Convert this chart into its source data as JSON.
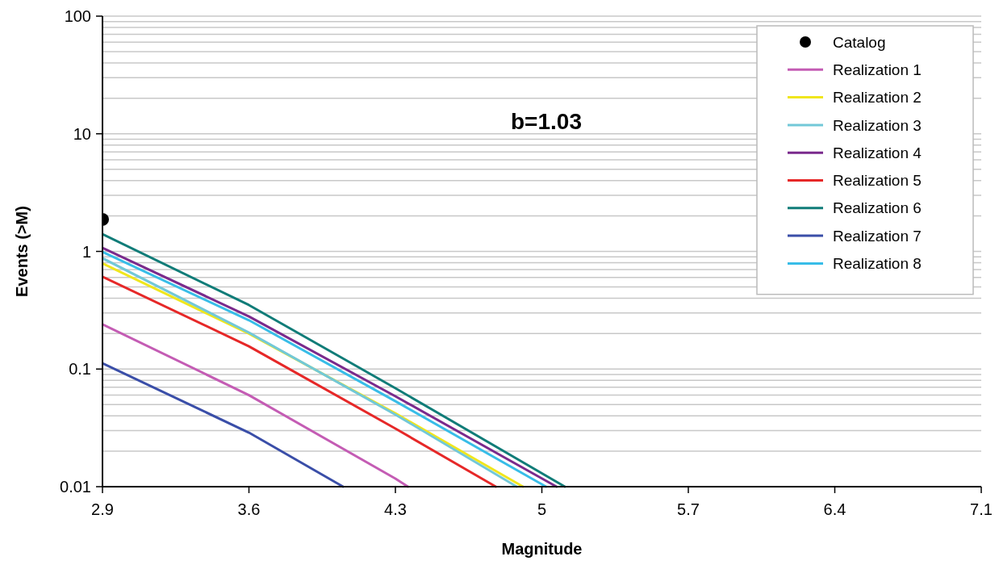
{
  "chart_data": {
    "type": "line",
    "xlabel": "Magnitude",
    "ylabel": "Events (>M)",
    "annotations": [
      "b=1.03"
    ],
    "log": "y",
    "grid": "y",
    "legend": "top right",
    "marker": "none",
    "line_style": "solid",
    "xlim": [
      2.9,
      7.1
    ],
    "xticks": [
      2.9,
      3.6,
      4.3,
      5,
      5.7,
      6.4,
      7.1
    ],
    "ylim": [
      0.01,
      100
    ],
    "yticks": [
      0.01,
      0.1,
      1,
      10,
      100
    ],
    "series": [
      {
        "name": "Catalog",
        "type": "scatter",
        "marker": "circle",
        "color": "#000000",
        "x": [
          2.9
        ],
        "values": [
          1.87
        ]
      },
      {
        "name": "Realization 1",
        "color": "#c45cb4",
        "x": [
          2.9,
          3.6,
          4.3,
          4.36
        ],
        "values": [
          0.24,
          0.06,
          0.0117,
          0.01
        ]
      },
      {
        "name": "Realization 2",
        "color": "#f0e61e",
        "x": [
          2.9,
          3.6,
          4.3,
          4.91
        ],
        "values": [
          0.79,
          0.2,
          0.042,
          0.01
        ]
      },
      {
        "name": "Realization 3",
        "color": "#72c8d8",
        "x": [
          2.9,
          3.6,
          4.3,
          4.88
        ],
        "values": [
          0.875,
          0.204,
          0.041,
          0.01
        ]
      },
      {
        "name": "Realization 4",
        "color": "#7a2a8c",
        "x": [
          2.9,
          3.6,
          4.3,
          5.07
        ],
        "values": [
          1.07,
          0.28,
          0.0587,
          0.01
        ]
      },
      {
        "name": "Realization 5",
        "color": "#e62828",
        "x": [
          2.9,
          3.6,
          4.3,
          4.78
        ],
        "values": [
          0.61,
          0.156,
          0.0312,
          0.01
        ]
      },
      {
        "name": "Realization 6",
        "color": "#107c78",
        "x": [
          2.9,
          3.6,
          4.3,
          5.11
        ],
        "values": [
          1.4,
          0.35,
          0.0687,
          0.01
        ]
      },
      {
        "name": "Realization 7",
        "color": "#3a4ea8",
        "x": [
          2.9,
          3.6,
          4.05
        ],
        "values": [
          0.112,
          0.0288,
          0.01
        ]
      },
      {
        "name": "Realization 8",
        "color": "#38bde8",
        "x": [
          2.9,
          3.6,
          4.3,
          5.02
        ],
        "values": [
          0.99,
          0.26,
          0.0533,
          0.01
        ]
      }
    ]
  }
}
